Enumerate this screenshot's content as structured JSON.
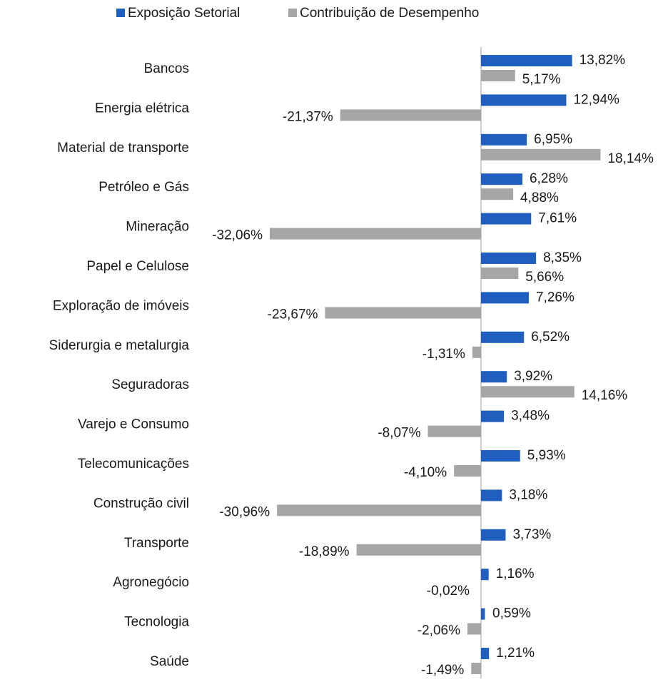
{
  "chart_data": {
    "type": "bar",
    "orientation": "horizontal",
    "categories": [
      "Bancos",
      "Energia elétrica",
      "Material de transporte",
      "Petróleo e Gás",
      "Mineração",
      "Papel e Celulose",
      "Exploração de imóveis",
      "Siderurgia e metalurgia",
      "Seguradoras",
      "Varejo e Consumo",
      "Telecomunicações",
      "Construção civil",
      "Transporte",
      "Agronegócio",
      "Tecnologia",
      "Saúde"
    ],
    "series": [
      {
        "name": "Exposição Setorial",
        "color": "#1f5fbf",
        "values": [
          13.82,
          12.94,
          6.95,
          6.28,
          7.61,
          8.35,
          7.26,
          6.52,
          3.92,
          3.48,
          5.93,
          3.18,
          3.73,
          1.16,
          0.59,
          1.21
        ],
        "value_labels": [
          "13,82%",
          "12,94%",
          "6,95%",
          "6,28%",
          "7,61%",
          "8,35%",
          "7,26%",
          "6,52%",
          "3,92%",
          "3,48%",
          "5,93%",
          "3,18%",
          "3,73%",
          "1,16%",
          "0,59%",
          "1,21%"
        ]
      },
      {
        "name": "Contribuição de Desempenho",
        "color": "#a6a6a6",
        "values": [
          5.17,
          -21.37,
          18.14,
          4.88,
          -32.06,
          5.66,
          -23.67,
          -1.31,
          14.16,
          -8.07,
          -4.1,
          -30.96,
          -18.89,
          -0.02,
          -2.06,
          -1.49
        ],
        "value_labels": [
          "5,17%",
          "-21,37%",
          "18,14%",
          "4,88%",
          "-32,06%",
          "5,66%",
          "-23,67%",
          "-1,31%",
          "14,16%",
          "-8,07%",
          "-4,10%",
          "-30,96%",
          "-18,89%",
          "-0,02%",
          "-2,06%",
          "-1,49%"
        ]
      }
    ],
    "legend": "top"
  }
}
